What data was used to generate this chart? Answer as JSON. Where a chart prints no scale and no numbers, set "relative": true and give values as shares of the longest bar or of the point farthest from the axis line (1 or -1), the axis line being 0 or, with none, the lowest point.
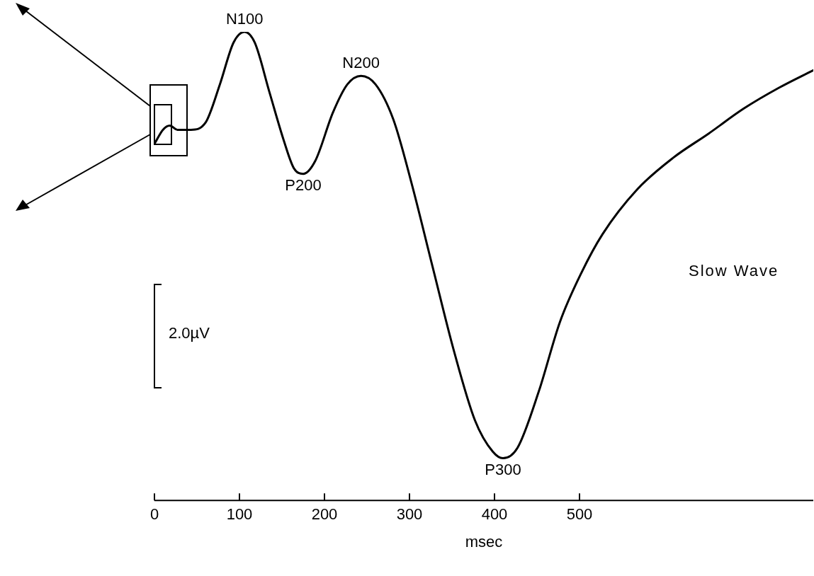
{
  "chart_data": {
    "type": "line",
    "relative": true,
    "xlabel": "msec",
    "xlim": [
      0,
      775
    ],
    "xticks": [
      0,
      100,
      200,
      300,
      400,
      500
    ],
    "grid": false,
    "legend": false,
    "marker": "none",
    "line_style": "solid",
    "series": [
      {
        "color": "#000000",
        "x": [
          0,
          10,
          18,
          27,
          43,
          60,
          77,
          93,
          106,
          118,
          135,
          152,
          164,
          175,
          189,
          210,
          227,
          243,
          260,
          281,
          302,
          327,
          352,
          377,
          398,
          410,
          427,
          452,
          477,
          502,
          527,
          568,
          610,
          652,
          693,
          735,
          775
        ],
        "values": [
          0.761,
          0.791,
          0.8,
          0.791,
          0.791,
          0.806,
          0.888,
          0.977,
          1,
          0.977,
          0.873,
          0.769,
          0.709,
          0.697,
          0.724,
          0.828,
          0.888,
          0.906,
          0.888,
          0.813,
          0.68,
          0.5,
          0.321,
          0.171,
          0.104,
          0.09,
          0.112,
          0.232,
          0.381,
          0.485,
          0.568,
          0.664,
          0.731,
          0.783,
          0.836,
          0.881,
          0.918
        ]
      }
    ],
    "annotations": [
      {
        "text": "N100",
        "x": 106,
        "y": 1
      },
      {
        "text": "P200",
        "x": 175,
        "y": 0.697
      },
      {
        "text": "N200",
        "x": 243,
        "y": 0.906
      },
      {
        "text": "P300",
        "x": 410,
        "y": 0.09
      },
      "Slow Wave",
      "2.0µV"
    ]
  }
}
